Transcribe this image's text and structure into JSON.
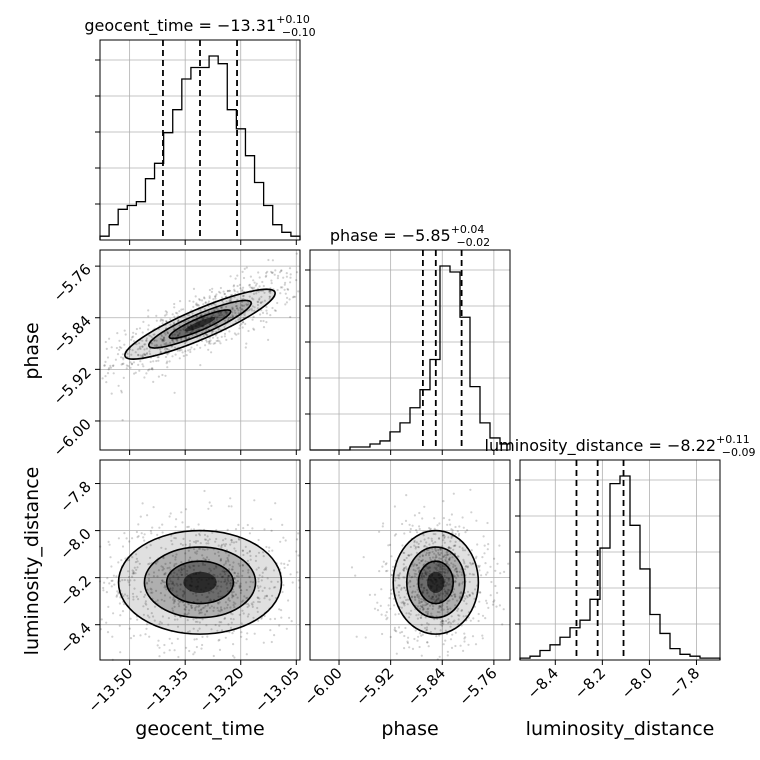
{
  "chart_data": {
    "type": "corner",
    "parameters": [
      "geocent_time",
      "phase",
      "luminosity_distance"
    ],
    "titles": [
      {
        "name": "geocent_time",
        "prefix": "geocent_time = ",
        "median": "−13.31",
        "plus": "+0.10",
        "minus": "−0.10"
      },
      {
        "name": "phase",
        "prefix": "phase = ",
        "median": "−5.85",
        "plus": "+0.04",
        "minus": "−0.02"
      },
      {
        "name": "luminosity_distance",
        "prefix": "luminosity_distance = ",
        "median": "−8.22",
        "plus": "+0.11",
        "minus": "−0.09"
      }
    ],
    "axis_labels": {
      "x": [
        "geocent_time",
        "phase",
        "luminosity_distance"
      ],
      "y": [
        "phase",
        "luminosity_distance"
      ]
    },
    "ranges": {
      "geocent_time": [
        -13.58,
        -13.04
      ],
      "phase": [
        -6.045,
        -5.735
      ],
      "luminosity_distance": [
        -8.55,
        -7.7
      ]
    },
    "ticks": {
      "geocent_time": {
        "values": [
          -13.5,
          -13.35,
          -13.2,
          -13.05
        ],
        "labels": [
          "−13.50",
          "−13.35",
          "−13.20",
          "−13.05"
        ]
      },
      "phase": {
        "values": [
          -6.0,
          -5.92,
          -5.84,
          -5.76
        ],
        "labels": [
          "−6.00",
          "−5.92",
          "−5.84",
          "−5.76"
        ]
      },
      "luminosity_distance": {
        "values": [
          -8.4,
          -8.2,
          -8.0,
          -7.8
        ],
        "labels": [
          "−8.4",
          "−8.2",
          "−8.0",
          "−7.8"
        ]
      }
    },
    "quantiles": {
      "geocent_time": [
        -13.41,
        -13.31,
        -13.21
      ],
      "phase": [
        -5.87,
        -5.85,
        -5.81
      ],
      "luminosity_distance": [
        -8.31,
        -8.22,
        -8.11
      ]
    },
    "histograms": {
      "geocent_time": [
        1,
        4,
        8,
        9,
        10,
        16,
        20,
        28,
        34,
        42,
        45,
        45,
        48,
        46,
        34,
        29,
        22,
        15,
        9,
        4,
        2,
        1
      ],
      "phase": [
        0,
        0,
        0,
        0,
        1,
        1,
        2,
        3,
        6,
        9,
        14,
        20,
        30,
        61,
        59,
        44,
        21,
        9,
        4,
        2
      ],
      "luminosity_distance": [
        1,
        2,
        5,
        8,
        12,
        17,
        21,
        32,
        59,
        93,
        97,
        71,
        48,
        24,
        14,
        6,
        3,
        2,
        1,
        1
      ]
    },
    "grid": true
  }
}
